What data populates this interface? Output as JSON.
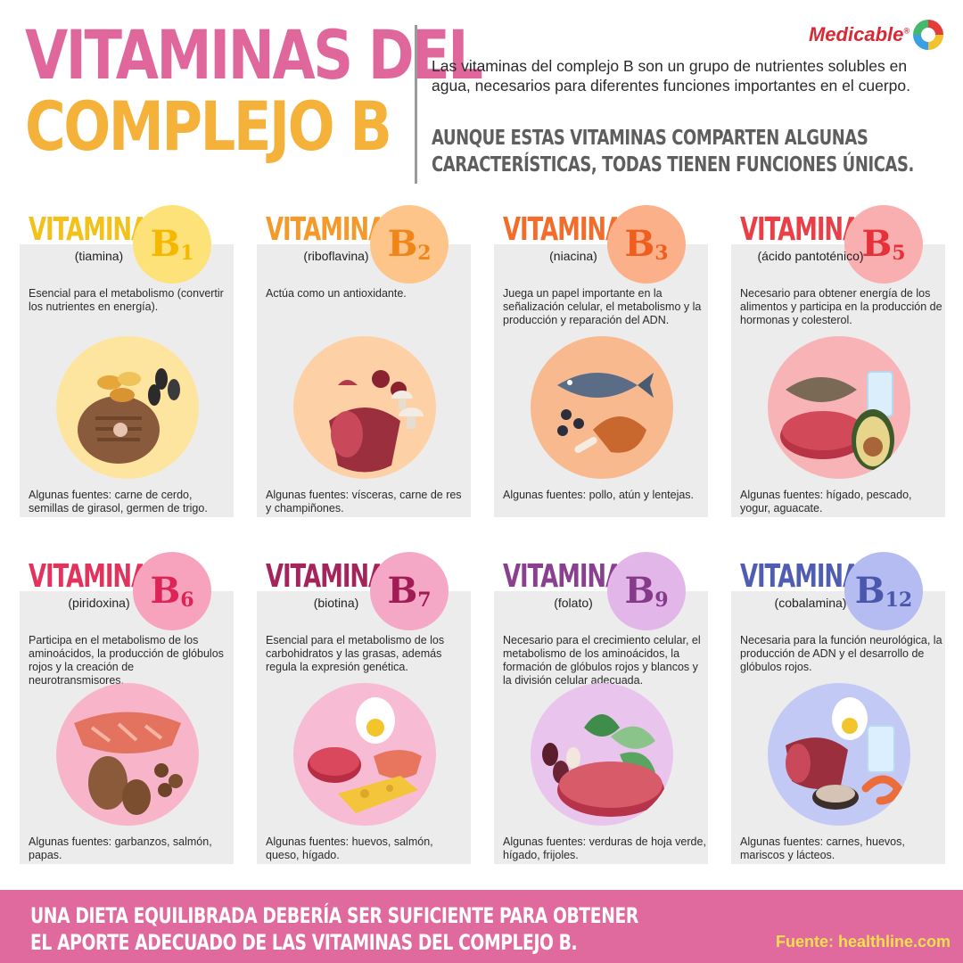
{
  "header": {
    "title_line1": "VITAMINAS DEL",
    "title_line2": "COMPLEJO B",
    "intro": "Las vitaminas del complejo B son un grupo de nutrientes solubles en agua, necesarios para diferentes funciones importantes en el cuerpo.",
    "intro_bold": "AUNQUE ESTAS VITAMINAS COMPARTEN ALGUNAS CARACTERÍSTICAS, TODAS TIENEN FUNCIONES ÚNICAS.",
    "brand": "Medicable",
    "brand_mark": "®"
  },
  "cards": [
    {
      "label": "VITAMINA",
      "letter": "B",
      "number": "1",
      "name": "(tiamina)",
      "description": "Esencial para el metabolismo (convertir los nutrientes en energía).",
      "sources": "Algunas fuentes: carne de cerdo, semillas de girasol, germen de trigo.",
      "text_color": "#f2c21a",
      "badge_color": "#fde27a",
      "badge_text_color": "#f5b800",
      "circle_color": "#fde5a0",
      "icon": "pork-chop-seeds-icon"
    },
    {
      "label": "VITAMINA",
      "letter": "B",
      "number": "2",
      "name": "(riboflavina)",
      "description": "Actúa como un antioxidante.",
      "sources": "Algunas fuentes: vísceras, carne de res y champiñones.",
      "text_color": "#f39a2b",
      "badge_color": "#fdc58a",
      "badge_text_color": "#f0861a",
      "circle_color": "#fdd0a6",
      "icon": "beef-mushrooms-icon"
    },
    {
      "label": "VITAMINA",
      "letter": "B",
      "number": "3",
      "name": "(niacina)",
      "description": "Juega un papel importante en la señalización celular, el metabolismo y la producción y reparación del ADN.",
      "sources": "Algunas fuentes: pollo, atún y lentejas.",
      "text_color": "#f26d2b",
      "badge_color": "#fbb089",
      "badge_text_color": "#ee5f1f",
      "circle_color": "#f9b98f",
      "icon": "fish-chicken-icon"
    },
    {
      "label": "VITAMINA",
      "letter": "B",
      "number": "5",
      "name": "(ácido pantoténico)",
      "description": "Necesario para obtener energía de los alimentos y participa en la producción de hormonas y colesterol.",
      "sources": "Algunas fuentes: hígado, pescado, yogur, aguacate.",
      "text_color": "#ea3f47",
      "badge_color": "#f9aeb0",
      "badge_text_color": "#e6303a",
      "circle_color": "#f8b3b6",
      "icon": "liver-avocado-icon"
    },
    {
      "label": "VITAMINA",
      "letter": "B",
      "number": "6",
      "name": "(piridoxina)",
      "description": "Participa en el metabolismo de los aminoácidos, la producción de glóbulos rojos y la creación de neurotransmisores.",
      "sources": "Algunas fuentes: garbanzos, salmón, papas.",
      "text_color": "#e2335d",
      "badge_color": "#f7a3be",
      "badge_text_color": "#dd2456",
      "circle_color": "#f8b5c9",
      "icon": "salmon-potato-icon"
    },
    {
      "label": "VITAMINA",
      "letter": "B",
      "number": "7",
      "name": "(biotina)",
      "description": "Esencial para el metabolismo de los carbohidratos y las grasas, además regula la expresión genética.",
      "sources": "Algunas fuentes: huevos, salmón, queso, hígado.",
      "text_color": "#a6245c",
      "badge_color": "#f5a7c6",
      "badge_text_color": "#a11c55",
      "circle_color": "#f7bbd3",
      "icon": "egg-cheese-icon"
    },
    {
      "label": "VITAMINA",
      "letter": "B",
      "number": "9",
      "name": "(folato)",
      "description": "Necesario para el crecimiento celular, el metabolismo de los aminoácidos, la formación de glóbulos rojos y blancos y la división celular adecuada.",
      "sources": "Algunas fuentes: verduras de hoja verde, hígado, frijoles.",
      "text_color": "#8b3f90",
      "badge_color": "#e2b6e8",
      "badge_text_color": "#853a8a",
      "circle_color": "#e9c5ee",
      "icon": "greens-beans-icon"
    },
    {
      "label": "VITAMINA",
      "letter": "B",
      "number": "12",
      "name": "(cobalamina)",
      "description": "Necesaria para la función neurológica, la producción de ADN y el desarrollo de glóbulos rojos.",
      "sources": "Algunas fuentes: carnes, huevos, mariscos y lácteos.",
      "text_color": "#4f5eb3",
      "badge_color": "#b5bcf1",
      "badge_text_color": "#4a57ad",
      "circle_color": "#c3c9f5",
      "icon": "meat-shrimp-icon"
    }
  ],
  "footer": {
    "message": "UNA DIETA EQUILIBRADA DEBERÍA SER SUFICIENTE PARA OBTENER EL APORTE ADECUADO DE LAS VITAMINAS DEL COMPLEJO B.",
    "source": "Fuente: healthline.com"
  }
}
